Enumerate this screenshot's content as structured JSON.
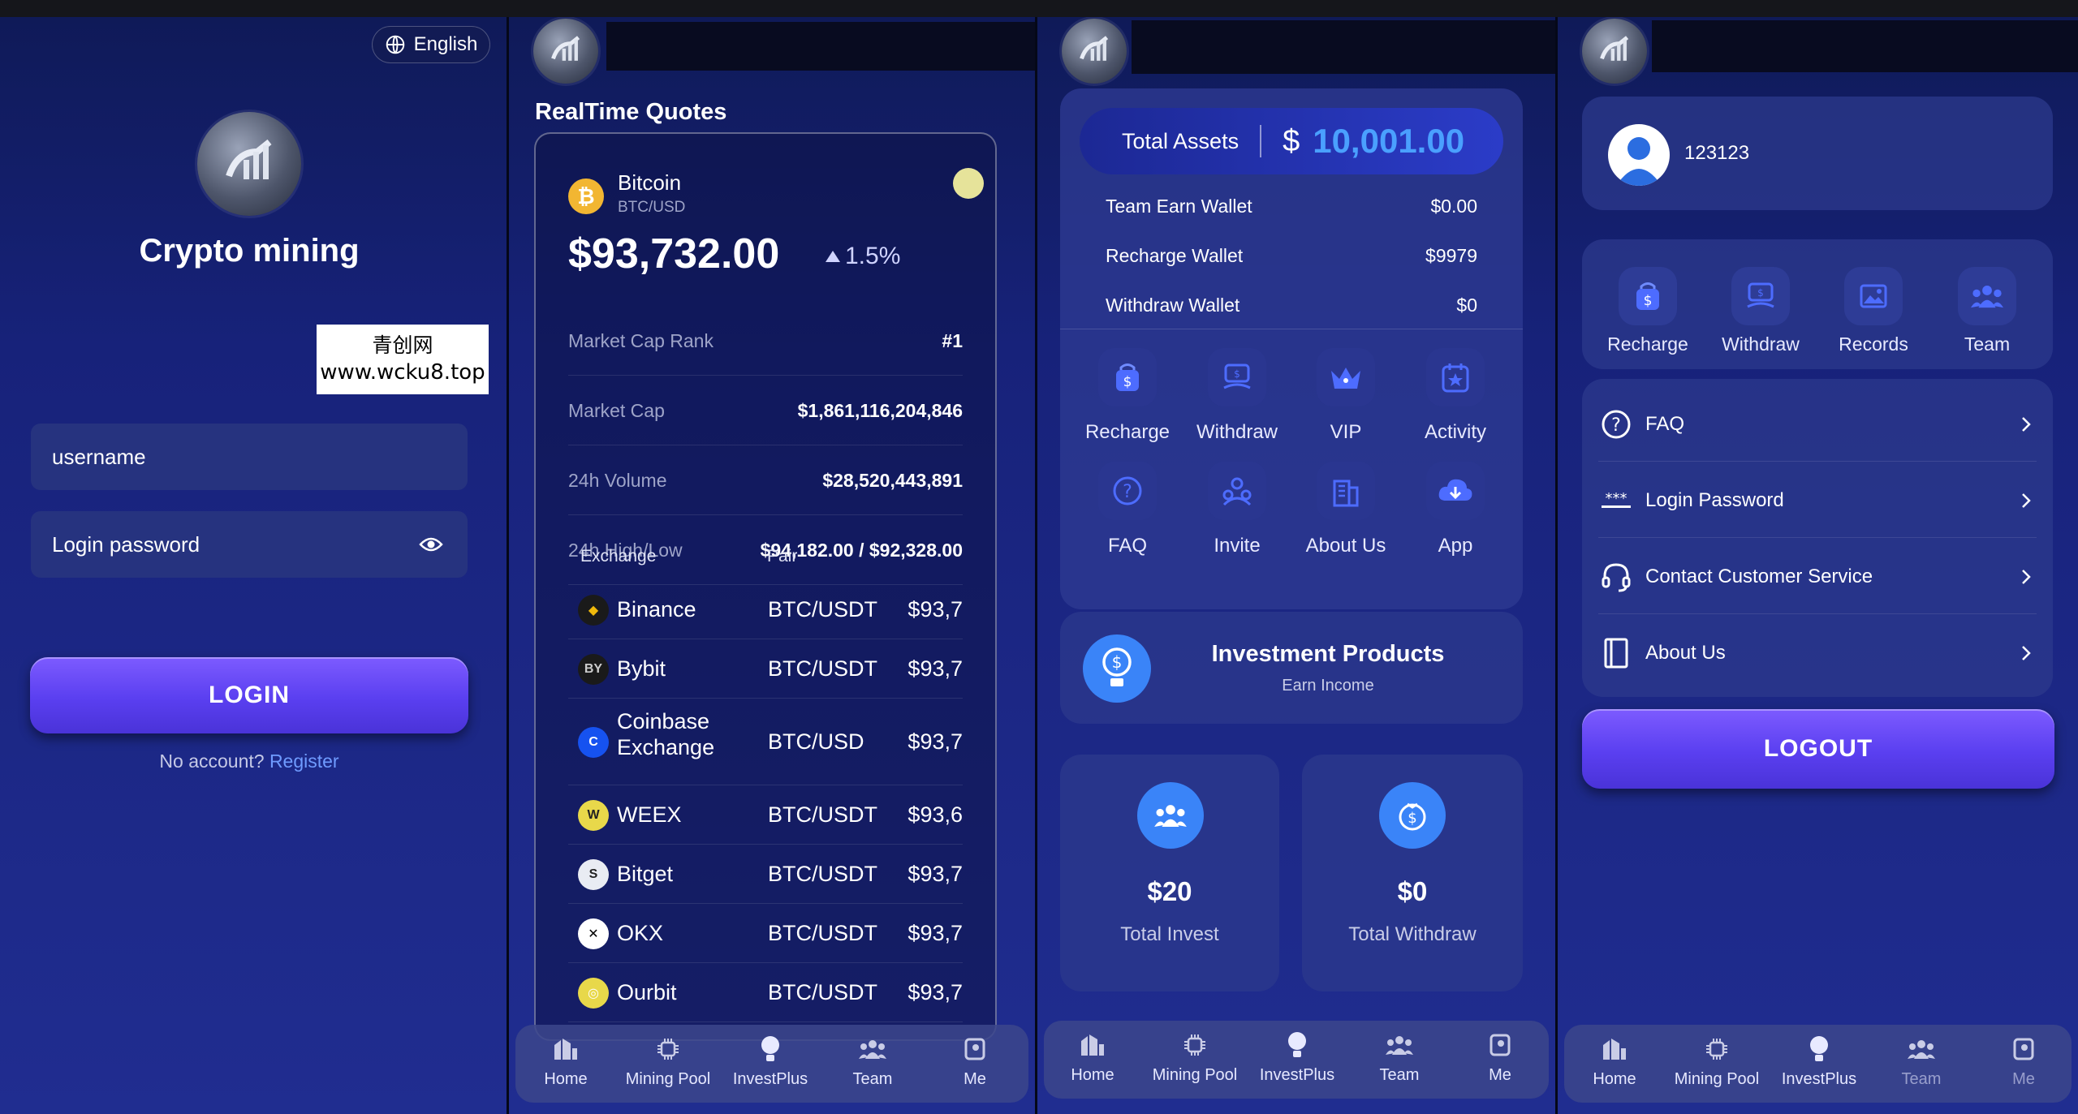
{
  "login": {
    "language": "English",
    "app_name": "Crypto mining",
    "watermark_line1": "青创网",
    "watermark_line2": "www.wcku8.top",
    "username_placeholder": "username",
    "password_placeholder": "Login password",
    "login_button": "LOGIN",
    "no_account": "No account?",
    "register_link": "Register"
  },
  "quotes": {
    "title": "RealTime Quotes",
    "coin_name": "Bitcoin",
    "coin_pair": "BTC/USD",
    "price": "$93,732.00",
    "change": "1.5%",
    "stats": [
      {
        "label": "Market Cap Rank",
        "value": "#1"
      },
      {
        "label": "Market Cap",
        "value": "$1,861,116,204,846"
      },
      {
        "label": "24h Volume",
        "value": "$28,520,443,891"
      },
      {
        "label": "24h High/Low",
        "value": "$94,182.00 / $92,328.00"
      }
    ],
    "col_exchange": "Exchange",
    "col_pair": "Pair",
    "exchanges": [
      {
        "name": "Binance",
        "pair": "BTC/USDT",
        "price": "$93,7"
      },
      {
        "name": "Bybit",
        "pair": "BTC/USDT",
        "price": "$93,7"
      },
      {
        "name": "Coinbase Exchange",
        "name1": "Coinbase",
        "name2": "Exchange",
        "pair": "BTC/USD",
        "price": "$93,7"
      },
      {
        "name": "WEEX",
        "pair": "BTC/USDT",
        "price": "$93,6"
      },
      {
        "name": "Bitget",
        "pair": "BTC/USDT",
        "price": "$93,7"
      },
      {
        "name": "OKX",
        "pair": "BTC/USDT",
        "price": "$93,7"
      },
      {
        "name": "Ourbit",
        "pair": "BTC/USDT",
        "price": "$93,7"
      }
    ]
  },
  "home": {
    "total_assets_label": "Total Assets",
    "currency_symbol": "$",
    "total_assets_value": "10,001.00",
    "wallets": [
      {
        "label": "Team Earn Wallet",
        "value": "$0.00"
      },
      {
        "label": "Recharge Wallet",
        "value": "$9979"
      },
      {
        "label": "Withdraw Wallet",
        "value": "$0"
      }
    ],
    "actions": [
      {
        "label": "Recharge",
        "icon": "bag-dollar-icon"
      },
      {
        "label": "Withdraw",
        "icon": "withdraw-icon"
      },
      {
        "label": "VIP",
        "icon": "crown-icon"
      },
      {
        "label": "Activity",
        "icon": "calendar-star-icon"
      },
      {
        "label": "FAQ",
        "icon": "question-icon"
      },
      {
        "label": "Invite",
        "icon": "invite-icon"
      },
      {
        "label": "About Us",
        "icon": "building-icon"
      },
      {
        "label": "App",
        "icon": "cloud-download-icon"
      }
    ],
    "invest_title": "Investment Products",
    "invest_subtitle": "Earn Income",
    "total_invest_value": "$20",
    "total_invest_label": "Total Invest",
    "total_withdraw_value": "$0",
    "total_withdraw_label": "Total Withdraw"
  },
  "me": {
    "user_id": "123123",
    "shortcuts": [
      {
        "label": "Recharge",
        "icon": "bag-dollar-icon"
      },
      {
        "label": "Withdraw",
        "icon": "withdraw-icon"
      },
      {
        "label": "Records",
        "icon": "image-icon"
      },
      {
        "label": "Team",
        "icon": "team-icon"
      }
    ],
    "menu": [
      {
        "label": "FAQ",
        "icon": "question-icon"
      },
      {
        "label": "Login Password",
        "icon": "password-icon"
      },
      {
        "label": "Contact Customer Service",
        "icon": "headset-icon"
      },
      {
        "label": "About Us",
        "icon": "book-icon"
      }
    ],
    "logout_button": "LOGOUT"
  },
  "nav": {
    "home": "Home",
    "mining_pool": "Mining Pool",
    "invest_plus": "InvestPlus",
    "team": "Team",
    "me": "Me"
  },
  "colors": {
    "background": "#17227a",
    "accent_purple": "#5a3ff0",
    "price_up": "#cfd3ff",
    "link_blue": "#6f9bff"
  }
}
